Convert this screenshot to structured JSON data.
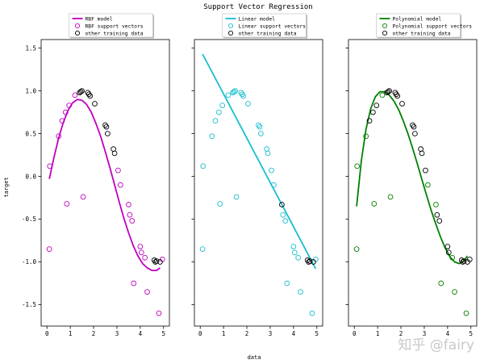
{
  "chart_data": {
    "type": "scatter",
    "title": "Support Vector Regression",
    "xlabel": "data",
    "ylabel": "target",
    "xlim": [
      -0.25,
      5.25
    ],
    "ylim": [
      -1.75,
      1.6
    ],
    "x_ticks": [
      0,
      1,
      2,
      3,
      4,
      5
    ],
    "y_ticks": [
      -1.5,
      -1.0,
      -0.5,
      0.0,
      0.5,
      1.0,
      1.5
    ],
    "y_tick_labels": [
      "-1.5",
      "-1.0",
      "-0.5",
      "0.0",
      "0.5",
      "1.0",
      "1.5"
    ],
    "training_data": {
      "x": [
        0.1,
        0.12,
        0.5,
        0.65,
        0.8,
        0.85,
        0.95,
        1.2,
        1.4,
        1.45,
        1.5,
        1.55,
        1.75,
        1.8,
        1.85,
        2.05,
        2.5,
        2.55,
        2.6,
        2.85,
        2.9,
        3.05,
        3.15,
        3.5,
        3.55,
        3.65,
        3.72,
        4.0,
        4.05,
        4.2,
        4.3,
        4.6,
        4.65,
        4.7,
        4.8,
        4.85,
        4.95
      ],
      "y": [
        -0.85,
        0.12,
        0.47,
        0.65,
        0.75,
        -0.32,
        0.83,
        0.95,
        0.98,
        0.99,
        1.0,
        -0.24,
        0.98,
        0.96,
        0.94,
        0.85,
        0.6,
        0.58,
        0.5,
        0.32,
        0.27,
        0.07,
        -0.1,
        -0.33,
        -0.45,
        -0.52,
        -1.25,
        -0.82,
        -0.89,
        -0.95,
        -1.35,
        -0.98,
        -1.0,
        -0.99,
        -1.6,
        -1.0,
        -0.97
      ]
    },
    "panels": [
      {
        "model_label": "RBF model",
        "sv_label": "RBF support vectors",
        "other_label": "other training data",
        "color": "#bf00bf",
        "curve": {
          "x": [
            0.1,
            0.3,
            0.5,
            0.7,
            0.9,
            1.1,
            1.3,
            1.5,
            1.7,
            1.9,
            2.1,
            2.3,
            2.5,
            2.7,
            2.9,
            3.1,
            3.3,
            3.5,
            3.7,
            3.9,
            4.1,
            4.3,
            4.5,
            4.7,
            4.85
          ],
          "y": [
            -0.03,
            0.22,
            0.45,
            0.63,
            0.77,
            0.86,
            0.9,
            0.89,
            0.84,
            0.75,
            0.62,
            0.47,
            0.29,
            0.1,
            -0.1,
            -0.3,
            -0.49,
            -0.66,
            -0.81,
            -0.93,
            -1.02,
            -1.07,
            -1.1,
            -1.1,
            -1.07
          ]
        },
        "sv_indices": [
          0,
          1,
          2,
          3,
          4,
          5,
          6,
          7,
          11,
          21,
          22,
          23,
          24,
          25,
          26,
          27,
          28,
          29,
          30,
          34,
          36
        ],
        "other_indices": [
          8,
          9,
          10,
          12,
          13,
          14,
          15,
          16,
          17,
          18,
          19,
          20,
          31,
          32,
          33,
          35
        ]
      },
      {
        "model_label": "Linear model",
        "sv_label": "Linear support vectors",
        "other_label": "other training data",
        "color": "#17becf",
        "curve": {
          "x": [
            0.1,
            4.95
          ],
          "y": [
            1.43,
            -1.08
          ]
        },
        "sv_indices": [
          0,
          1,
          2,
          3,
          4,
          5,
          6,
          7,
          8,
          9,
          10,
          11,
          12,
          13,
          14,
          15,
          16,
          17,
          18,
          19,
          20,
          21,
          22,
          24,
          25,
          26,
          27,
          28,
          29,
          30,
          34,
          36
        ],
        "other_indices": [
          23,
          31,
          32,
          33,
          35
        ]
      },
      {
        "model_label": "Polynomial model",
        "sv_label": "Polynomial support vectors",
        "other_label": "other training data",
        "color": "#008000",
        "curve": {
          "x": [
            0.1,
            0.3,
            0.5,
            0.7,
            0.9,
            1.1,
            1.3,
            1.5,
            1.7,
            1.9,
            2.1,
            2.3,
            2.5,
            2.7,
            2.9,
            3.1,
            3.3,
            3.5,
            3.7,
            3.9,
            4.1,
            4.3,
            4.5,
            4.7,
            4.85
          ],
          "y": [
            -0.35,
            0.18,
            0.55,
            0.79,
            0.93,
            0.99,
            0.99,
            0.95,
            0.88,
            0.78,
            0.65,
            0.5,
            0.33,
            0.15,
            -0.04,
            -0.22,
            -0.4,
            -0.56,
            -0.71,
            -0.84,
            -0.94,
            -1.0,
            -1.02,
            -0.99,
            -0.93
          ]
        },
        "sv_indices": [
          0,
          1,
          2,
          5,
          7,
          11,
          22,
          23,
          26,
          29,
          30,
          34
        ],
        "other_indices": [
          3,
          4,
          6,
          8,
          9,
          10,
          12,
          13,
          14,
          15,
          16,
          17,
          18,
          19,
          20,
          21,
          24,
          25,
          27,
          28,
          31,
          32,
          33,
          35,
          36
        ]
      }
    ]
  },
  "watermark": "知乎 @fairy"
}
